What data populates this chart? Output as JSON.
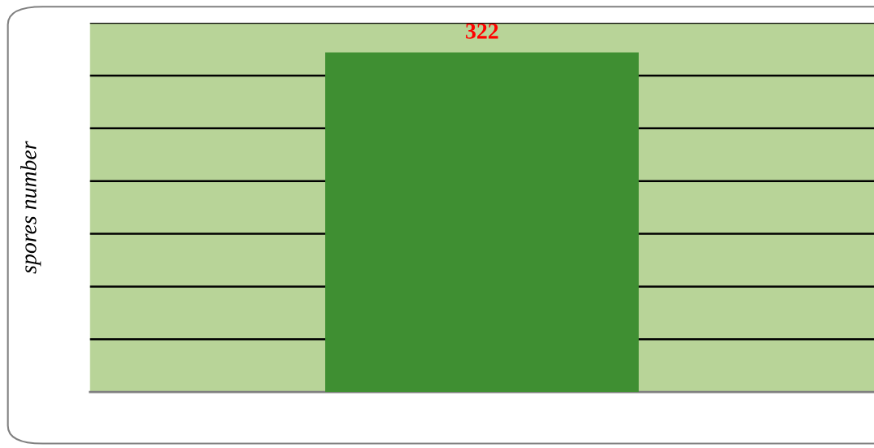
{
  "chart_data": {
    "type": "bar",
    "ylabel": "spores number",
    "categories": [
      null
    ],
    "values": [
      322
    ],
    "color": "#3f8f32",
    "data_labels": true,
    "ylim": [
      0,
      350
    ],
    "yticks": [
      {
        "value": 0,
        "label": null
      },
      {
        "value": 50,
        "label": null
      },
      {
        "value": 100,
        "label": null
      },
      {
        "value": 150,
        "label": null
      },
      {
        "value": 200,
        "label": null
      },
      {
        "value": 250,
        "label": null
      },
      {
        "value": 300,
        "label": null
      },
      {
        "value": 350,
        "label": null
      }
    ],
    "grid": "y"
  }
}
